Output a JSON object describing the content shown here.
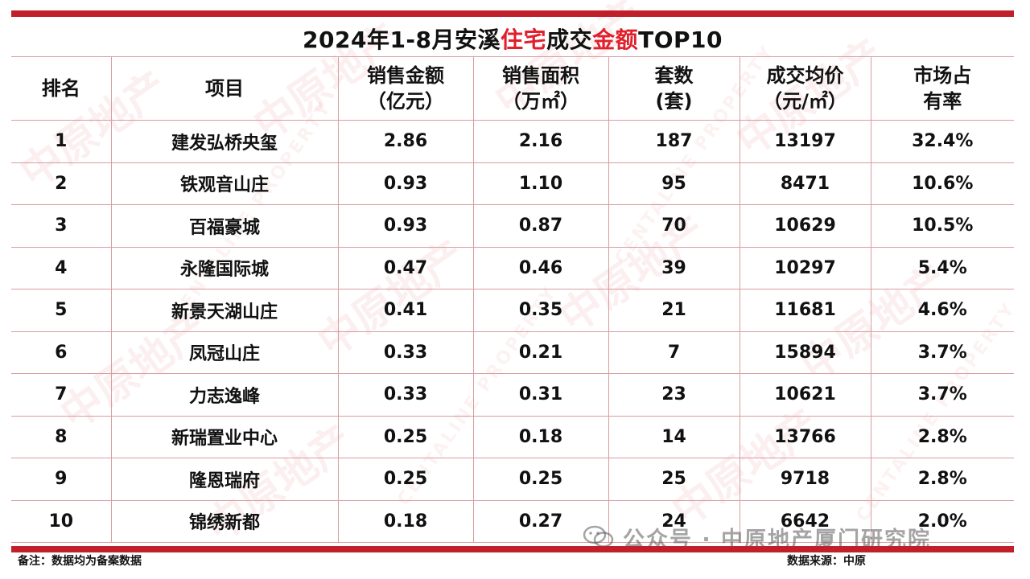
{
  "title": {
    "part1": "2024年1-8月安溪",
    "highlight1": "住宅",
    "part2": "成交",
    "highlight2": "金额",
    "part3": "TOP10"
  },
  "colors": {
    "accent": "#c0202a",
    "highlight_text": "#e0202c",
    "grid": "#d89da0"
  },
  "table": {
    "headers": [
      {
        "line1": "排名",
        "line2": ""
      },
      {
        "line1": "项目",
        "line2": ""
      },
      {
        "line1": "销售金额",
        "line2": "（亿元）"
      },
      {
        "line1": "销售面积",
        "line2": "（万㎡）"
      },
      {
        "line1": "套数",
        "line2": "(套)"
      },
      {
        "line1": "成交均价",
        "line2": "（元/㎡）"
      },
      {
        "line1": "市场占",
        "line2": "有率"
      }
    ],
    "rows": [
      [
        "1",
        "建发弘桥央玺",
        "2.86",
        "2.16",
        "187",
        "13197",
        "32.4%"
      ],
      [
        "2",
        "铁观音山庄",
        "0.93",
        "1.10",
        "95",
        "8471",
        "10.6%"
      ],
      [
        "3",
        "百福豪城",
        "0.93",
        "0.87",
        "70",
        "10629",
        "10.5%"
      ],
      [
        "4",
        "永隆国际城",
        "0.47",
        "0.46",
        "39",
        "10297",
        "5.4%"
      ],
      [
        "5",
        "新景天湖山庄",
        "0.41",
        "0.35",
        "21",
        "11681",
        "4.6%"
      ],
      [
        "6",
        "凤冠山庄",
        "0.33",
        "0.21",
        "7",
        "15894",
        "3.7%"
      ],
      [
        "7",
        "力志逸峰",
        "0.33",
        "0.31",
        "23",
        "10621",
        "3.7%"
      ],
      [
        "8",
        "新瑞置业中心",
        "0.25",
        "0.18",
        "14",
        "13766",
        "2.8%"
      ],
      [
        "9",
        "隆恩瑞府",
        "0.25",
        "0.25",
        "25",
        "9718",
        "2.8%"
      ],
      [
        "10",
        "锦绣新都",
        "0.18",
        "0.27",
        "24",
        "6642",
        "2.0%"
      ]
    ]
  },
  "footer": {
    "note": "备注：数据均为备案数据",
    "source": "数据来源：中原"
  },
  "wechat_overlay": {
    "icon": "wechat-icon",
    "text": "公众号 · 中原地产厦门研究院"
  },
  "watermark": {
    "cn": "中原地产",
    "en": "CENTALINE PROPERTY"
  }
}
